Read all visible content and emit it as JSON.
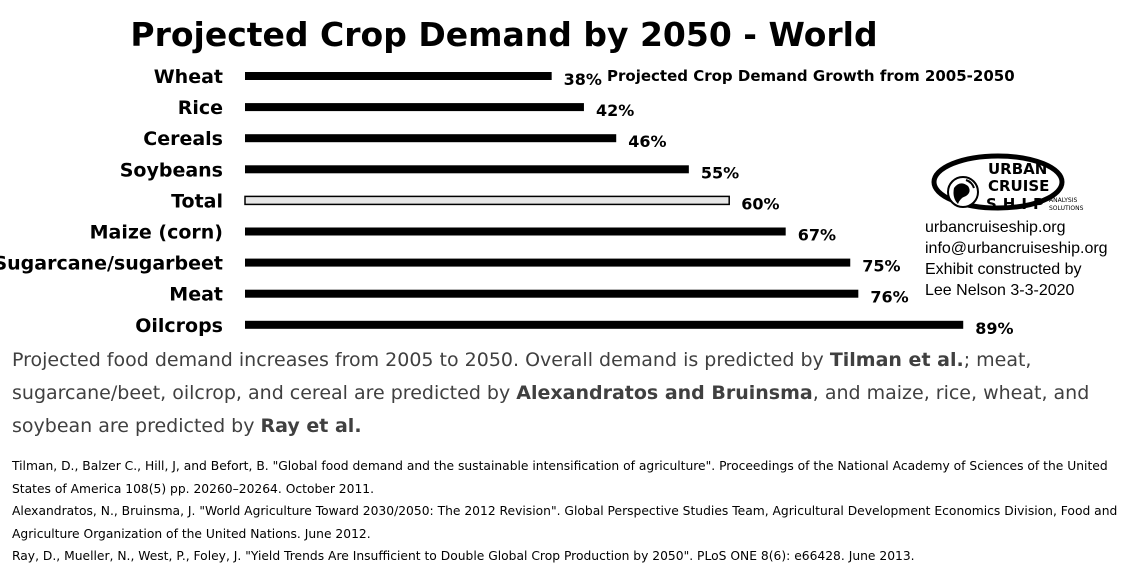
{
  "chart_data": {
    "type": "bar",
    "orientation": "horizontal",
    "title": "Projected Crop Demand by 2050 - World",
    "subtitle": "Projected Crop Demand Growth from 2005-2050",
    "categories": [
      "Wheat",
      "Rice",
      "Cereals",
      "Soybeans",
      "Total",
      "Maize (corn)",
      "Sugarcane/sugarbeet",
      "Meat",
      "Oilcrops"
    ],
    "values": [
      38,
      42,
      46,
      55,
      60,
      67,
      75,
      76,
      89
    ],
    "value_labels": [
      "38%",
      "42%",
      "46%",
      "55%",
      "60%",
      "67%",
      "75%",
      "76%",
      "89%"
    ],
    "highlight_category": "Total",
    "grid": false,
    "xlim": [
      0,
      100
    ],
    "bar_color": "#000000",
    "highlight_fill": "#e6e6e6"
  },
  "logo": {
    "line1": "URBAN",
    "line2": "CRUISE",
    "line3": "SHIP",
    "tagline_1": "ANALYSIS",
    "tagline_2": "SOLUTIONS"
  },
  "contact": {
    "website": "urbancruiseship.org",
    "email": "info@urbancruiseship.org",
    "credit_1": "Exhibit constructed by",
    "credit_2": "Lee Nelson 3-3-2020"
  },
  "caption": {
    "part1": "Projected food demand increases from 2005 to 2050. Overall demand is predicted by ",
    "source1": "Tilman et al.",
    "part2": "; meat, sugarcane/beet, oilcrop, and cereal are predicted by ",
    "source2": "Alexandratos and Bruinsma",
    "part3": ", and maize, rice, wheat, and soybean are predicted by ",
    "source3": "Ray et al."
  },
  "references": [
    "Tilman, D., Balzer C., Hill, J, and Befort, B. \"Global food demand and the sustainable intensification of agriculture\". Proceedings of the National Academy of Sciences of the United States of America 108(5) pp. 20260–20264. October 2011.",
    "Alexandratos, N., Bruinsma, J. \"World Agriculture Toward 2030/2050: The 2012 Revision\". Global Perspective Studies Team, Agricultural Development Economics Division, Food and Agriculture Organization of the United Nations. June 2012.",
    "Ray, D., Mueller, N., West, P., Foley, J. \"Yield Trends Are Insufficient to Double Global Crop Production by 2050\". PLoS ONE 8(6): e66428. June 2013."
  ]
}
